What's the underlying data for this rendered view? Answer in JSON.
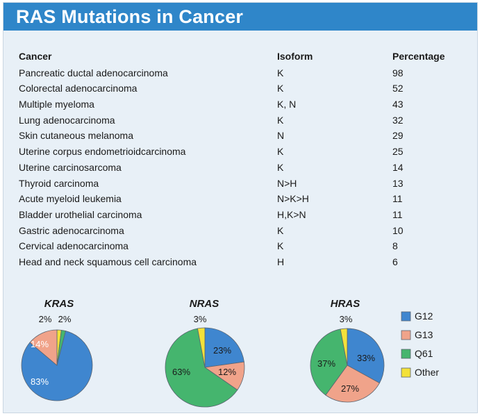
{
  "title": "RAS Mutations in Cancer",
  "table": {
    "headers": {
      "cancer": "Cancer",
      "isoform": "Isoform",
      "percentage": "Percentage"
    },
    "rows": [
      {
        "cancer": "Pancreatic ductal adenocarcinoma",
        "isoform": "K",
        "percentage": "98"
      },
      {
        "cancer": "Colorectal adenocarcinoma",
        "isoform": "K",
        "percentage": "52"
      },
      {
        "cancer": "Multiple myeloma",
        "isoform": "K, N",
        "percentage": "43"
      },
      {
        "cancer": "Lung adenocarcinoma",
        "isoform": "K",
        "percentage": "32"
      },
      {
        "cancer": "Skin cutaneous melanoma",
        "isoform": "N",
        "percentage": "29"
      },
      {
        "cancer": "Uterine corpus endometrioidcarcinoma",
        "isoform": "K",
        "percentage": "25"
      },
      {
        "cancer": "Uterine carcinosarcoma",
        "isoform": "K",
        "percentage": "14"
      },
      {
        "cancer": "Thyroid carcinoma",
        "isoform": "N>H",
        "percentage": "13"
      },
      {
        "cancer": "Acute myeloid leukemia",
        "isoform": "N>K>H",
        "percentage": "11"
      },
      {
        "cancer": "Bladder urothelial carcinoma",
        "isoform": "H,K>N",
        "percentage": "11"
      },
      {
        "cancer": "Gastric adenocarcinoma",
        "isoform": "K",
        "percentage": "10"
      },
      {
        "cancer": "Cervical adenocarcinoma",
        "isoform": "K",
        "percentage": "8"
      },
      {
        "cancer": "Head and neck squamous cell carcinoma",
        "isoform": "H",
        "percentage": "6"
      }
    ]
  },
  "colors": {
    "G12": "#3f86cf",
    "G13": "#f0a38a",
    "Q61": "#45b56e",
    "Other": "#f3e13a",
    "title_bar": "#2f86c9",
    "panel": "#e8f0f7"
  },
  "chart_data": [
    {
      "type": "pie",
      "title": "KRAS",
      "categories": [
        "G12",
        "G13",
        "Q61",
        "Other"
      ],
      "values": [
        83,
        14,
        2,
        2
      ],
      "labels": [
        "83%",
        "14%",
        "2%",
        "2%"
      ],
      "legend": "none"
    },
    {
      "type": "pie",
      "title": "NRAS",
      "categories": [
        "G12",
        "G13",
        "Q61",
        "Other"
      ],
      "values": [
        23,
        12,
        63,
        3
      ],
      "labels": [
        "23%",
        "12%",
        "63%",
        "3%"
      ],
      "legend": "none"
    },
    {
      "type": "pie",
      "title": "HRAS",
      "categories": [
        "G12",
        "G13",
        "Q61",
        "Other"
      ],
      "values": [
        33,
        27,
        37,
        3
      ],
      "labels": [
        "33%",
        "27%",
        "37%",
        "3%"
      ],
      "legend": "right",
      "legend_entries": [
        "G12",
        "G13",
        "Q61",
        "Other"
      ]
    }
  ]
}
